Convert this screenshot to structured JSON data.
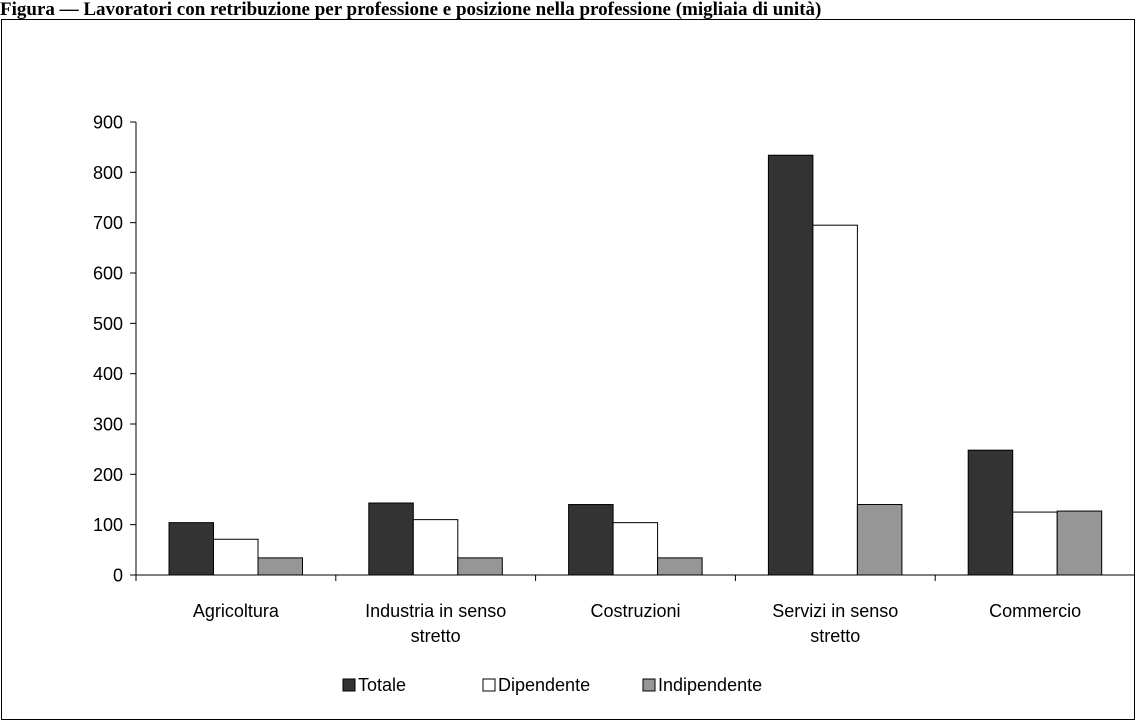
{
  "caption": "Figura — Lavoratori con retribuzione per professione e posizione nella professione (migliaia di unità)",
  "chart_data": {
    "type": "bar",
    "title": "",
    "xlabel": "",
    "ylabel": "",
    "ylim": [
      0,
      900
    ],
    "yticks": [
      "0",
      "100",
      "200",
      "300",
      "400",
      "500",
      "600",
      "700",
      "800",
      "900"
    ],
    "categories": [
      [
        "Agricoltura"
      ],
      [
        "Industria in senso",
        "stretto"
      ],
      [
        "Costruzioni"
      ],
      [
        "Servizi in senso",
        "stretto"
      ],
      [
        "Commercio"
      ]
    ],
    "series": [
      {
        "name": "Totale",
        "color": "#333333",
        "values": [
          104,
          143,
          140,
          834,
          248
        ]
      },
      {
        "name": "Dipendente",
        "color": "#ffffff",
        "values": [
          71,
          110,
          104,
          695,
          125
        ]
      },
      {
        "name": "Indipendente",
        "color": "#969696",
        "values": [
          34,
          34,
          34,
          140,
          127
        ]
      }
    ],
    "grid": false,
    "legend_position": "bottom"
  }
}
